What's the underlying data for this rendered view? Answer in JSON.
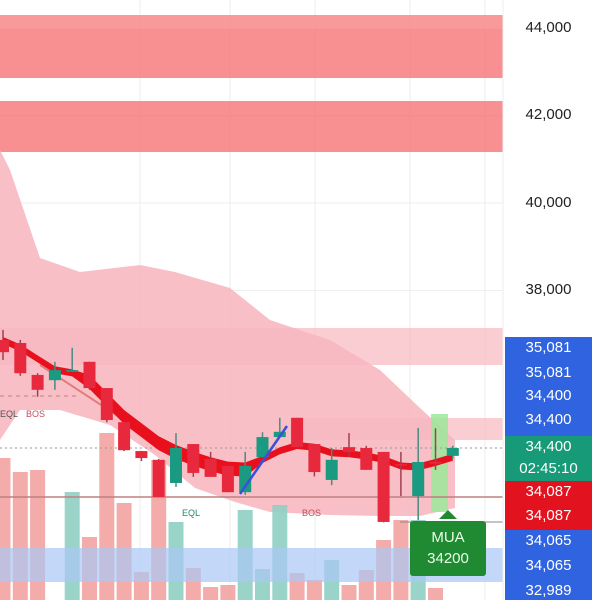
{
  "chart_data": {
    "type": "candlestick",
    "ylim": [
      32900,
      44300
    ],
    "y_ticks": [
      "44,000",
      "42,000",
      "40,000",
      "38,000"
    ],
    "y_tick_values": [
      44000,
      42000,
      40000,
      38000
    ],
    "colors": {
      "up": "#1a9a80",
      "down": "#e8283c",
      "volume_up": "#8fcfc3",
      "volume_down": "#f2a3a0",
      "zone_red": "#f56b6d",
      "zone_pink": "#f8b8c0",
      "zone_blue": "#a9c8f5",
      "ribbon": "#e8101c"
    },
    "candles": [
      {
        "o": 36870,
        "c": 36590,
        "h": 37100,
        "l": 36410,
        "v": 142
      },
      {
        "o": 36800,
        "c": 36110,
        "h": 36870,
        "l": 36050,
        "v": 128
      },
      {
        "o": 36070,
        "c": 35730,
        "h": 36110,
        "l": 35570,
        "v": 130
      },
      {
        "o": 35950,
        "c": 36180,
        "h": 36370,
        "l": 35730,
        "v": 0
      },
      {
        "o": 36140,
        "c": 36180,
        "h": 36690,
        "l": 36140,
        "v": 108
      },
      {
        "o": 36370,
        "c": 35770,
        "h": 36370,
        "l": 35730,
        "v": 63
      },
      {
        "o": 35770,
        "c": 35040,
        "h": 35770,
        "l": 34990,
        "v": 167
      },
      {
        "o": 34990,
        "c": 34350,
        "h": 34990,
        "l": 34330,
        "v": 97
      },
      {
        "o": 34330,
        "c": 34170,
        "h": 34330,
        "l": 34100,
        "v": 28
      },
      {
        "o": 34130,
        "c": 33280,
        "h": 34150,
        "l": 33280,
        "v": 140
      },
      {
        "o": 33600,
        "c": 34400,
        "h": 34740,
        "l": 33510,
        "v": 78
      },
      {
        "o": 34490,
        "c": 33830,
        "h": 34490,
        "l": 33740,
        "v": 32
      },
      {
        "o": 34150,
        "c": 33740,
        "h": 34310,
        "l": 33740,
        "v": 13
      },
      {
        "o": 33990,
        "c": 33390,
        "h": 33990,
        "l": 33390,
        "v": 15
      },
      {
        "o": 33390,
        "c": 33990,
        "h": 34310,
        "l": 33330,
        "v": 90
      },
      {
        "o": 34190,
        "c": 34650,
        "h": 34760,
        "l": 34190,
        "v": 31
      },
      {
        "o": 34650,
        "c": 34770,
        "h": 35090,
        "l": 34650,
        "v": 95
      },
      {
        "o": 35090,
        "c": 34420,
        "h": 35090,
        "l": 34420,
        "v": 27
      },
      {
        "o": 34490,
        "c": 33850,
        "h": 34490,
        "l": 33750,
        "v": 20
      },
      {
        "o": 33670,
        "c": 34130,
        "h": 34400,
        "l": 33550,
        "v": 40
      },
      {
        "o": 34420,
        "c": 34310,
        "h": 34740,
        "l": 34200,
        "v": 15
      },
      {
        "o": 34400,
        "c": 33900,
        "h": 34450,
        "l": 33900,
        "v": 30
      },
      {
        "o": 34310,
        "c": 32710,
        "h": 34310,
        "l": 32700,
        "v": 60
      },
      {
        "o": 34030,
        "c": 34000,
        "h": 34310,
        "l": 33300,
        "v": 80
      },
      {
        "o": 33300,
        "c": 34080,
        "h": 34860,
        "l": 32750,
        "v": 80
      },
      {
        "o": 34080,
        "c": 34060,
        "h": 34850,
        "l": 33900,
        "v": 12
      },
      {
        "o": 34220,
        "c": 34400,
        "h": 34450,
        "l": 34150,
        "v": 0
      }
    ],
    "ribbon": [
      36870,
      36700,
      36450,
      36200,
      36130,
      36000,
      35600,
      35200,
      34900,
      34600,
      34400,
      34250,
      34120,
      34020,
      34000,
      34150,
      34350,
      34470,
      34430,
      34300,
      34280,
      34230,
      34150,
      34000,
      33980,
      34080,
      34200
    ],
    "annotations": {
      "eql_1": "EQL",
      "bos_1": "BOS",
      "eql_2": "EQL",
      "bos_2": "BOS"
    },
    "price_tags": [
      {
        "text": "35,081",
        "color": "#2f63e0"
      },
      {
        "text": "35,081",
        "color": "#2f63e0"
      },
      {
        "text": "34,400",
        "color": "#2f63e0"
      },
      {
        "text": "34,400",
        "color": "#2f63e0"
      },
      {
        "text": "34,400",
        "color": "#169a78"
      },
      {
        "text": "02:45:10",
        "color": "#169a78"
      },
      {
        "text": "34,087",
        "color": "#e3121f"
      },
      {
        "text": "34,087",
        "color": "#e3121f"
      },
      {
        "text": "34,065",
        "color": "#2f63e0"
      },
      {
        "text": "34,065",
        "color": "#2f63e0"
      },
      {
        "text": "32,989",
        "color": "#2f63e0"
      }
    ],
    "signal": {
      "label": "MUA",
      "price": "34200"
    }
  }
}
